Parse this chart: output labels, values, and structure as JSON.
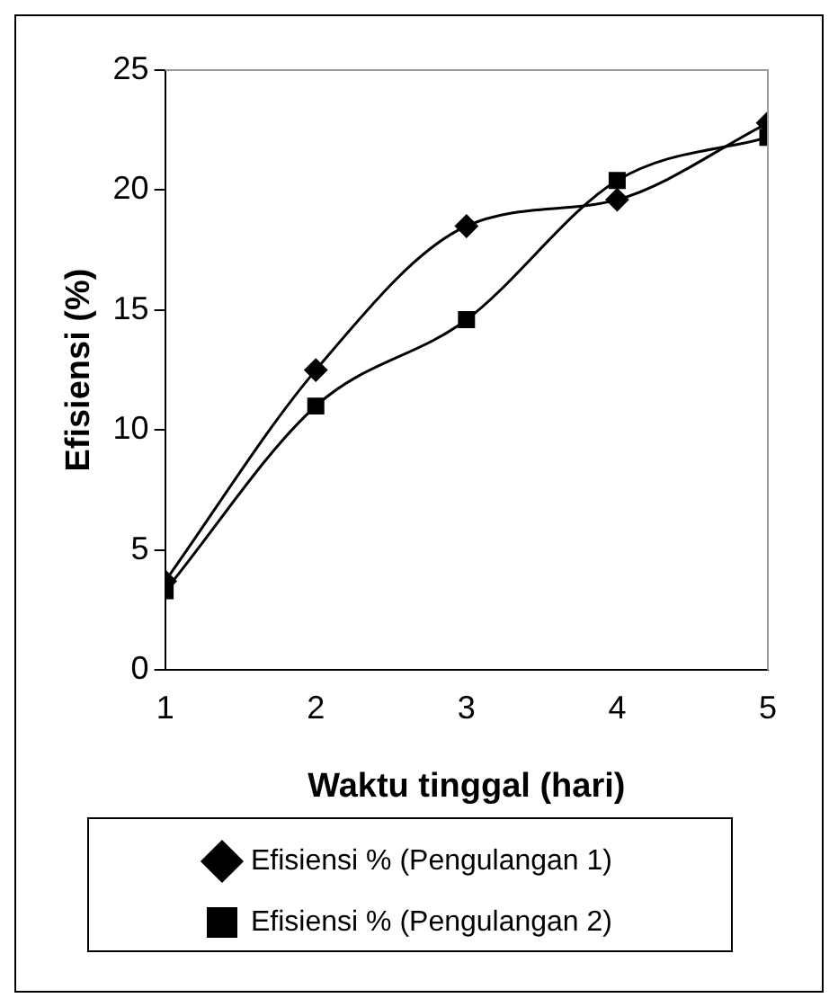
{
  "chart_data": {
    "type": "line",
    "xlabel": "Waktu tinggal (hari)",
    "ylabel": "Efisiensi (%)",
    "x": [
      1,
      2,
      3,
      4,
      5
    ],
    "series": [
      {
        "name": "Efisiensi % (Pengulangan 1)",
        "color": "#000000",
        "marker": "diamond",
        "values": [
          3.7,
          12.5,
          18.5,
          19.6,
          22.8
        ]
      },
      {
        "name": "Efisiensi % (Pengulangan 2)",
        "color": "#000000",
        "marker": "square",
        "values": [
          3.3,
          11.0,
          14.6,
          20.4,
          22.2
        ]
      }
    ],
    "xlim": [
      1,
      5
    ],
    "xticks": [
      1,
      2,
      3,
      4,
      5
    ],
    "ylim": [
      0,
      25
    ],
    "yticks": [
      0,
      5,
      10,
      15,
      20,
      25
    ],
    "grid": false,
    "legend": "bottom",
    "line_style": "solid"
  }
}
